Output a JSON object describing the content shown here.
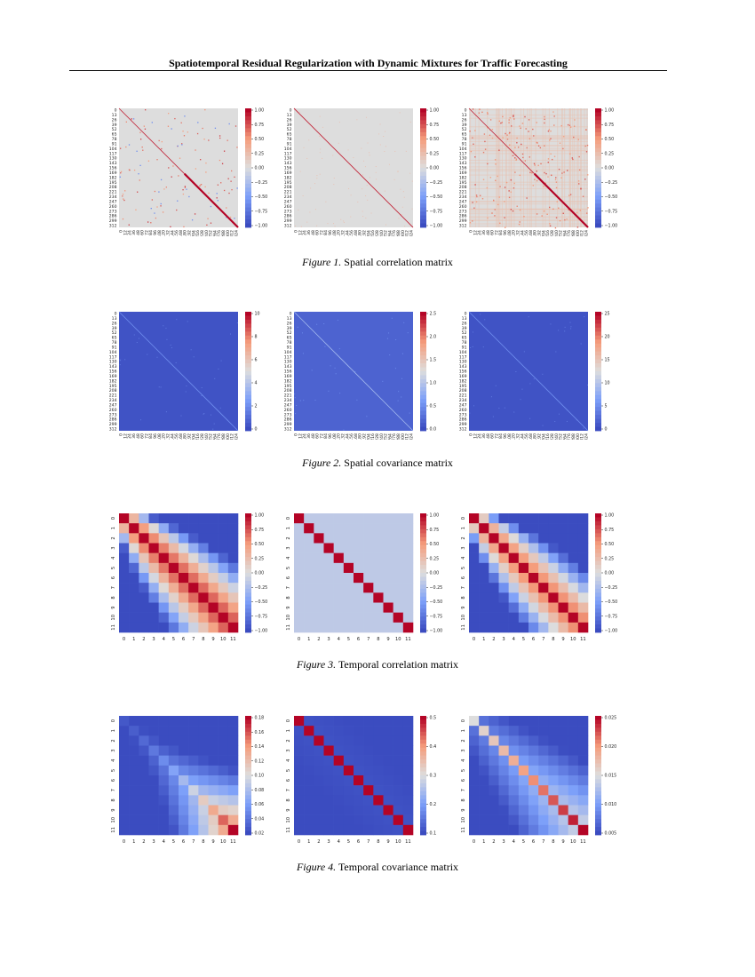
{
  "header": {
    "title": "Spatiotemporal Residual Regularization with Dynamic Mixtures for Traffic Forecasting"
  },
  "figures": [
    {
      "id": "spatial-corr",
      "caption_label": "Figure 1.",
      "caption_text": " Spatial correlation matrix",
      "kind": "spatial",
      "panels": [
        {
          "pattern": "sparse-diag",
          "cbar_ticks": [
            "1.00",
            "0.75",
            "0.50",
            "0.25",
            "0.00",
            "−0.25",
            "−0.50",
            "−0.75",
            "−1.00"
          ],
          "y_ticks": [
            "0",
            "13",
            "26",
            "39",
            "52",
            "65",
            "78",
            "91",
            "104",
            "117",
            "130",
            "143",
            "156",
            "169",
            "182",
            "195",
            "208",
            "221",
            "234",
            "247",
            "260",
            "273",
            "286",
            "299",
            "312"
          ],
          "x_ticks": [
            "0",
            "12",
            "24",
            "36",
            "48",
            "60",
            "72",
            "84",
            "96",
            "108",
            "120",
            "132",
            "144",
            "156",
            "168",
            "180",
            "192",
            "204",
            "216",
            "228",
            "240",
            "252",
            "264",
            "276",
            "288",
            "300",
            "312",
            "324"
          ]
        },
        {
          "pattern": "clean-diag",
          "cbar_ticks": [
            "1.00",
            "0.75",
            "0.50",
            "0.25",
            "0.00",
            "−0.25",
            "−0.50",
            "−0.75",
            "−1.00"
          ],
          "y_ticks": [
            "0",
            "13",
            "26",
            "39",
            "52",
            "65",
            "78",
            "91",
            "104",
            "117",
            "130",
            "143",
            "156",
            "169",
            "182",
            "195",
            "208",
            "221",
            "234",
            "247",
            "260",
            "273",
            "286",
            "299",
            "312"
          ],
          "x_ticks": [
            "0",
            "12",
            "24",
            "36",
            "48",
            "60",
            "72",
            "84",
            "96",
            "108",
            "120",
            "132",
            "144",
            "156",
            "168",
            "180",
            "192",
            "204",
            "216",
            "228",
            "240",
            "252",
            "264",
            "276",
            "288",
            "300",
            "312",
            "324"
          ]
        },
        {
          "pattern": "dense-diag",
          "cbar_ticks": [
            "1.00",
            "0.75",
            "0.50",
            "0.25",
            "0.00",
            "−0.25",
            "−0.50",
            "−0.75",
            "−1.00"
          ],
          "y_ticks": [
            "0",
            "13",
            "26",
            "39",
            "52",
            "65",
            "78",
            "91",
            "104",
            "117",
            "130",
            "143",
            "156",
            "169",
            "182",
            "195",
            "208",
            "221",
            "234",
            "247",
            "260",
            "273",
            "286",
            "299",
            "312"
          ],
          "x_ticks": [
            "0",
            "12",
            "24",
            "36",
            "48",
            "60",
            "72",
            "84",
            "96",
            "108",
            "120",
            "132",
            "144",
            "156",
            "168",
            "180",
            "192",
            "204",
            "216",
            "228",
            "240",
            "252",
            "264",
            "276",
            "288",
            "300",
            "312",
            "324"
          ]
        }
      ]
    },
    {
      "id": "spatial-cov",
      "caption_label": "Figure 2.",
      "caption_text": " Spatial covariance matrix",
      "kind": "spatial",
      "panels": [
        {
          "pattern": "cov-a",
          "cbar_ticks": [
            "10",
            "8",
            "6",
            "4",
            "2",
            "0"
          ],
          "y_ticks": [
            "0",
            "13",
            "26",
            "39",
            "52",
            "65",
            "78",
            "91",
            "104",
            "117",
            "130",
            "143",
            "156",
            "169",
            "182",
            "195",
            "208",
            "221",
            "234",
            "247",
            "260",
            "273",
            "286",
            "299",
            "312"
          ],
          "x_ticks": [
            "0",
            "12",
            "24",
            "36",
            "48",
            "60",
            "72",
            "84",
            "96",
            "108",
            "120",
            "132",
            "144",
            "156",
            "168",
            "180",
            "192",
            "204",
            "216",
            "228",
            "240",
            "252",
            "264",
            "276",
            "288",
            "300",
            "312",
            "324"
          ]
        },
        {
          "pattern": "cov-b",
          "cbar_ticks": [
            "2.5",
            "2.0",
            "1.5",
            "1.0",
            "0.5",
            "0.0"
          ],
          "y_ticks": [
            "0",
            "13",
            "26",
            "39",
            "52",
            "65",
            "78",
            "91",
            "104",
            "117",
            "130",
            "143",
            "156",
            "169",
            "182",
            "195",
            "208",
            "221",
            "234",
            "247",
            "260",
            "273",
            "286",
            "299",
            "312"
          ],
          "x_ticks": [
            "0",
            "12",
            "24",
            "36",
            "48",
            "60",
            "72",
            "84",
            "96",
            "108",
            "120",
            "132",
            "144",
            "156",
            "168",
            "180",
            "192",
            "204",
            "216",
            "228",
            "240",
            "252",
            "264",
            "276",
            "288",
            "300",
            "312",
            "324"
          ]
        },
        {
          "pattern": "cov-c",
          "cbar_ticks": [
            "25",
            "20",
            "15",
            "10",
            "5",
            "0"
          ],
          "y_ticks": [
            "0",
            "13",
            "26",
            "39",
            "52",
            "65",
            "78",
            "91",
            "104",
            "117",
            "130",
            "143",
            "156",
            "169",
            "182",
            "195",
            "208",
            "221",
            "234",
            "247",
            "260",
            "273",
            "286",
            "299",
            "312"
          ],
          "x_ticks": [
            "0",
            "12",
            "24",
            "36",
            "48",
            "60",
            "72",
            "84",
            "96",
            "108",
            "120",
            "132",
            "144",
            "156",
            "168",
            "180",
            "192",
            "204",
            "216",
            "228",
            "240",
            "252",
            "264",
            "276",
            "288",
            "300",
            "312",
            "324"
          ]
        }
      ]
    },
    {
      "id": "temporal-corr",
      "caption_label": "Figure 3.",
      "caption_text": " Temporal correlation matrix",
      "kind": "temporal",
      "panels": [
        {
          "pattern": "tcorr-broad",
          "cbar_ticks": [
            "1.00",
            "0.75",
            "0.50",
            "0.25",
            "0.00",
            "−0.25",
            "−0.50",
            "−0.75",
            "−1.00"
          ],
          "ticks": [
            "0",
            "1",
            "2",
            "3",
            "4",
            "5",
            "6",
            "7",
            "8",
            "9",
            "10",
            "11"
          ]
        },
        {
          "pattern": "tcorr-diag",
          "cbar_ticks": [
            "1.00",
            "0.75",
            "0.50",
            "0.25",
            "0.00",
            "−0.25",
            "−0.50",
            "−0.75",
            "−1.00"
          ],
          "ticks": [
            "0",
            "1",
            "2",
            "3",
            "4",
            "5",
            "6",
            "7",
            "8",
            "9",
            "10",
            "11"
          ]
        },
        {
          "pattern": "tcorr-mid",
          "cbar_ticks": [
            "1.00",
            "0.75",
            "0.50",
            "0.25",
            "0.00",
            "−0.25",
            "−0.50",
            "−0.75",
            "−1.00"
          ],
          "ticks": [
            "0",
            "1",
            "2",
            "3",
            "4",
            "5",
            "6",
            "7",
            "8",
            "9",
            "10",
            "11"
          ]
        }
      ]
    },
    {
      "id": "temporal-cov",
      "caption_label": "Figure 4.",
      "caption_text": " Temporal covariance matrix",
      "kind": "temporal",
      "panels": [
        {
          "pattern": "tcov-grow",
          "cbar_ticks": [
            "0.18",
            "0.16",
            "0.14",
            "0.12",
            "0.10",
            "0.08",
            "0.06",
            "0.04",
            "0.02"
          ],
          "ticks": [
            "0",
            "1",
            "2",
            "3",
            "4",
            "5",
            "6",
            "7",
            "8",
            "9",
            "10",
            "11"
          ]
        },
        {
          "pattern": "tcov-diag",
          "cbar_ticks": [
            "0.5",
            "0.4",
            "0.3",
            "0.2",
            "0.1"
          ],
          "ticks": [
            "0",
            "1",
            "2",
            "3",
            "4",
            "5",
            "6",
            "7",
            "8",
            "9",
            "10",
            "11"
          ]
        },
        {
          "pattern": "tcov-diag-grow",
          "cbar_ticks": [
            "0.025",
            "0.020",
            "0.015",
            "0.010",
            "0.005"
          ],
          "ticks": [
            "0",
            "1",
            "2",
            "3",
            "4",
            "5",
            "6",
            "7",
            "8",
            "9",
            "10",
            "11"
          ]
        }
      ]
    }
  ]
}
